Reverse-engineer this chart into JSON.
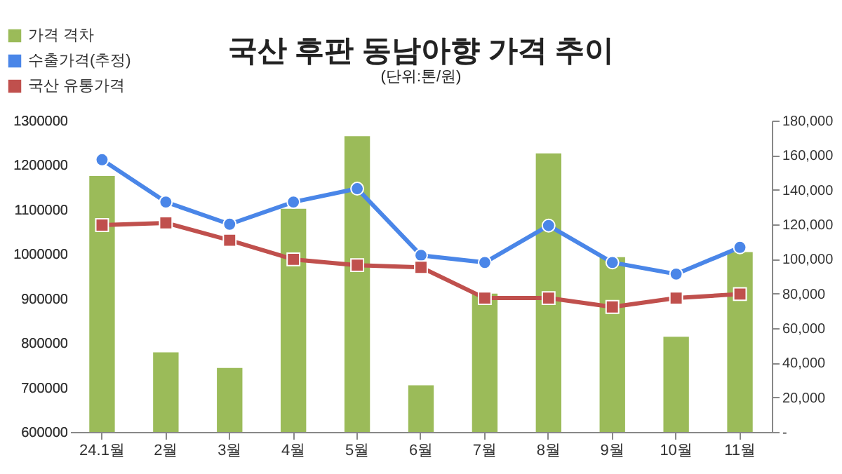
{
  "chart_data": {
    "type": "bar",
    "title": "국산 후판 동남아향 가격 추이",
    "subtitle": "(단위:톤/원)",
    "categories": [
      "24.1월",
      "2월",
      "3월",
      "4월",
      "5월",
      "6월",
      "7월",
      "8월",
      "9월",
      "10월",
      "11월"
    ],
    "series": [
      {
        "name": "가격 격차",
        "axis": "y2",
        "color": "#9bbb59",
        "values": [
          148000,
          46000,
          37000,
          129000,
          171000,
          27000,
          80000,
          161000,
          101000,
          55000,
          104000
        ]
      },
      {
        "name": "수출가격(추정)",
        "type": "line",
        "marker": "circle",
        "color": "#4a86e8",
        "values": [
          1212000,
          1117000,
          1067000,
          1117000,
          1147000,
          997000,
          981000,
          1064000,
          981000,
          955000,
          1015000
        ]
      },
      {
        "name": "국산 유통가격",
        "type": "line",
        "marker": "square",
        "color": "#c0504d",
        "values": [
          1065000,
          1070000,
          1031000,
          988000,
          975000,
          970000,
          901000,
          901000,
          881000,
          901000,
          910000
        ]
      }
    ],
    "ylim": [
      600000,
      1300000
    ],
    "yticks": [
      600000,
      700000,
      800000,
      900000,
      1000000,
      1100000,
      1200000,
      1300000
    ],
    "y2lim": [
      0,
      180000
    ],
    "y2ticks": [
      {
        "value": 0,
        "label": "-"
      },
      {
        "value": 20000,
        "label": "20,000"
      },
      {
        "value": 40000,
        "label": "40,000"
      },
      {
        "value": 60000,
        "label": "60,000"
      },
      {
        "value": 80000,
        "label": "80,000"
      },
      {
        "value": 100000,
        "label": "100,000"
      },
      {
        "value": 120000,
        "label": "120,000"
      },
      {
        "value": 140000,
        "label": "140,000"
      },
      {
        "value": 160000,
        "label": "160,000"
      },
      {
        "value": 180000,
        "label": "180,000"
      }
    ],
    "grid": false,
    "legend": "top left"
  }
}
